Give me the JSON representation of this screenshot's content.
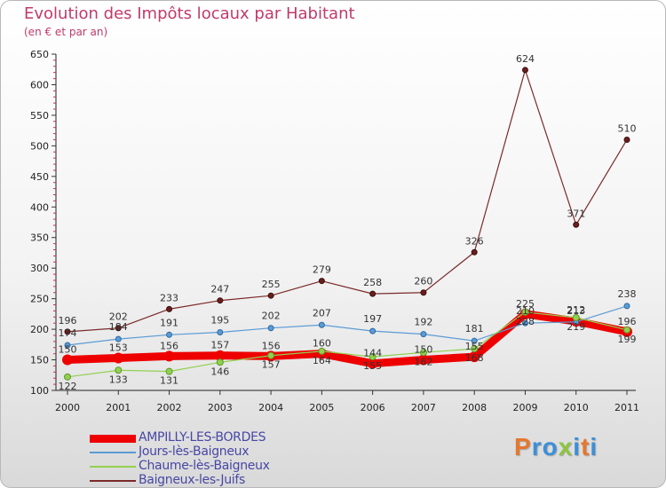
{
  "title": "Evolution des Impôts locaux par Habitant",
  "subtitle": "(en € et par an)",
  "logo": {
    "p": "P",
    "r": "r",
    "o": "o",
    "x": "x",
    "i1": "i",
    "t": "t",
    "i2": "i"
  },
  "chart_data": {
    "type": "line",
    "title": "Evolution des Impôts locaux par Habitant",
    "subtitle": "(en € et par an)",
    "xlabel": "",
    "ylabel": "",
    "ylim": [
      100,
      650
    ],
    "yticks": [
      100,
      150,
      200,
      250,
      300,
      350,
      400,
      450,
      500,
      550,
      600,
      650
    ],
    "grid": false,
    "legend_position": "bottom-left",
    "x": [
      "2000",
      "2001",
      "2002",
      "2003",
      "2004",
      "2005",
      "2006",
      "2007",
      "2008",
      "2009",
      "2010",
      "2011"
    ],
    "series": [
      {
        "name": "AMPILLY-LES-BORDES",
        "color": "#ee0000",
        "values": [
          150,
          153,
          156,
          157,
          156,
          160,
          144,
          150,
          155,
          225,
          213,
          196
        ]
      },
      {
        "name": "Jours-lès-Baigneux",
        "color": "#5b9bd5",
        "values": [
          174,
          184,
          191,
          195,
          202,
          207,
          197,
          192,
          181,
          210,
          212,
          238
        ]
      },
      {
        "name": "Chaume-lès-Baigneux",
        "color": "#92d050",
        "values": [
          122,
          133,
          131,
          146,
          157,
          164,
          155,
          162,
          168,
          228,
          219,
          199
        ]
      },
      {
        "name": "Baigneux-les-Juifs",
        "color": "#7b2a2a",
        "values": [
          196,
          202,
          233,
          247,
          255,
          279,
          258,
          260,
          326,
          624,
          371,
          510
        ]
      }
    ],
    "data_labels": {
      "AMPILLY-LES-BORDES": [
        "150",
        "153",
        "156",
        "157",
        "156",
        "160",
        "144",
        "150",
        "155",
        "225",
        "213",
        "196"
      ],
      "Jours-lès-Baigneux": [
        "174",
        "184",
        "191",
        "195",
        "202",
        "207",
        "197",
        "192",
        "181",
        "210",
        "212",
        "238"
      ],
      "Chaume-lès-Baigneux": [
        "122",
        "133",
        "131",
        "146",
        "157",
        "164",
        "155",
        "162",
        "168",
        "228",
        "219",
        "199"
      ],
      "Baigneux-les-Juifs": [
        "196",
        "202",
        "233",
        "247",
        "255",
        "279",
        "258",
        "260",
        "326",
        "624",
        "371",
        "510"
      ]
    }
  }
}
